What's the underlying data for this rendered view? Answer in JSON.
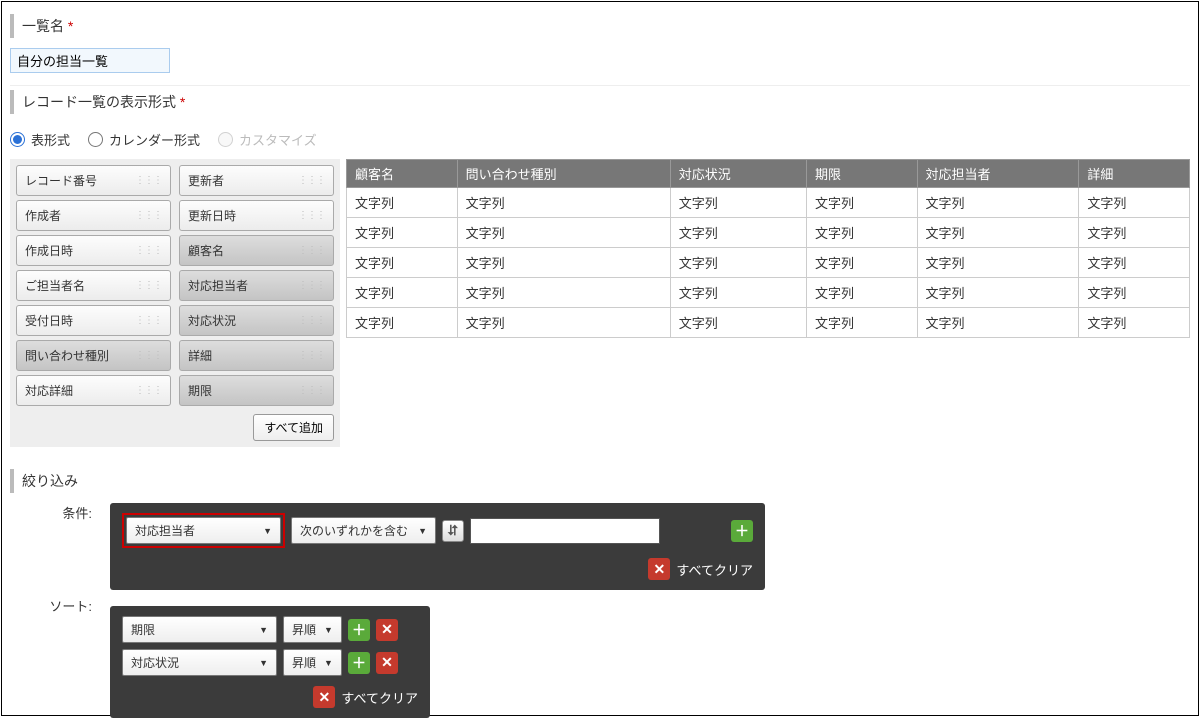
{
  "section1": {
    "title": "一覧名",
    "required": "*"
  },
  "list_name_value": "自分の担当一覧",
  "section2": {
    "title": "レコード一覧の表示形式",
    "required": "*"
  },
  "view_types": {
    "table": "表形式",
    "calendar": "カレンダー形式",
    "custom": "カスタマイズ"
  },
  "palette": {
    "left": [
      {
        "label": "レコード番号",
        "dark": false
      },
      {
        "label": "作成者",
        "dark": false
      },
      {
        "label": "作成日時",
        "dark": false
      },
      {
        "label": "ご担当者名",
        "dark": false
      },
      {
        "label": "受付日時",
        "dark": false
      },
      {
        "label": "問い合わせ種別",
        "dark": true
      },
      {
        "label": "対応詳細",
        "dark": false
      }
    ],
    "right": [
      {
        "label": "更新者",
        "dark": false
      },
      {
        "label": "更新日時",
        "dark": false
      },
      {
        "label": "顧客名",
        "dark": true
      },
      {
        "label": "対応担当者",
        "dark": true
      },
      {
        "label": "対応状況",
        "dark": true
      },
      {
        "label": "詳細",
        "dark": true
      },
      {
        "label": "期限",
        "dark": true
      }
    ],
    "add_all": "すべて追加"
  },
  "grid": {
    "headers": [
      "顧客名",
      "問い合わせ種別",
      "対応状況",
      "期限",
      "対応担当者",
      "詳細"
    ],
    "cell": "文字列",
    "row_count": 5
  },
  "filter": {
    "section_title": "絞り込み",
    "label": "条件:",
    "field": "対応担当者",
    "operator": "次のいずれかを含む",
    "tree_icon": "⮑",
    "clear_all": "すべてクリア"
  },
  "sort": {
    "label": "ソート:",
    "rows": [
      {
        "field": "期限",
        "order": "昇順"
      },
      {
        "field": "対応状況",
        "order": "昇順"
      }
    ],
    "clear_all": "すべてクリア"
  }
}
